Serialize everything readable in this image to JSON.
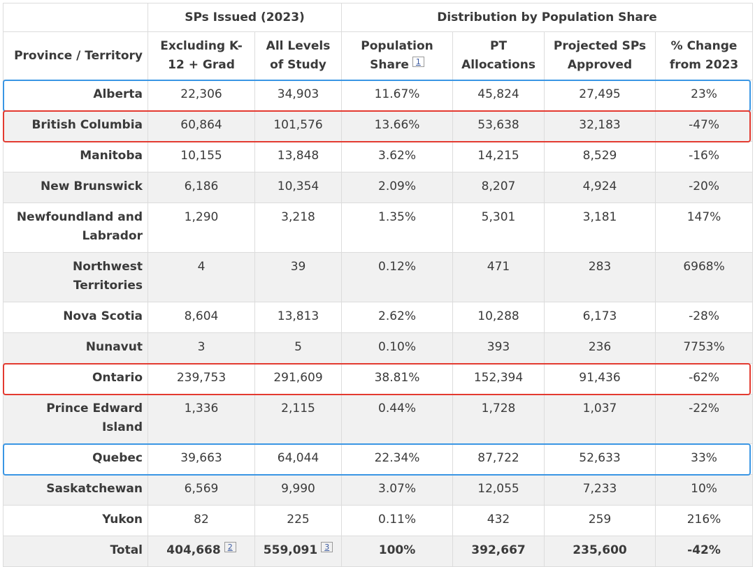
{
  "table": {
    "group_headers": [
      "SPs Issued (2023)",
      "Distribution by Population Share"
    ],
    "col_province": "Province / Territory",
    "col_excl": "Excluding K-12 + Grad",
    "col_all": "All Levels of Study",
    "col_popshare": "Population Share",
    "col_popshare_fn": "1",
    "col_pt": "PT Allocations",
    "col_projected": "Projected SPs Approved",
    "col_change": "% Change from 2023",
    "rows": [
      {
        "province": "Alberta",
        "excl": "22,306",
        "all": "34,903",
        "share": "11.67%",
        "pt": "45,824",
        "projected": "27,495",
        "change": "23%"
      },
      {
        "province": "British Columbia",
        "excl": "60,864",
        "all": "101,576",
        "share": "13.66%",
        "pt": "53,638",
        "projected": "32,183",
        "change": "-47%"
      },
      {
        "province": "Manitoba",
        "excl": "10,155",
        "all": "13,848",
        "share": "3.62%",
        "pt": "14,215",
        "projected": "8,529",
        "change": "-16%"
      },
      {
        "province": "New Brunswick",
        "excl": "6,186",
        "all": "10,354",
        "share": "2.09%",
        "pt": "8,207",
        "projected": "4,924",
        "change": "-20%"
      },
      {
        "province": "Newfoundland and Labrador",
        "excl": "1,290",
        "all": "3,218",
        "share": "1.35%",
        "pt": "5,301",
        "projected": "3,181",
        "change": "147%"
      },
      {
        "province": "Northwest Territories",
        "excl": "4",
        "all": "39",
        "share": "0.12%",
        "pt": "471",
        "projected": "283",
        "change": "6968%"
      },
      {
        "province": "Nova Scotia",
        "excl": "8,604",
        "all": "13,813",
        "share": "2.62%",
        "pt": "10,288",
        "projected": "6,173",
        "change": "-28%"
      },
      {
        "province": "Nunavut",
        "excl": "3",
        "all": "5",
        "share": "0.10%",
        "pt": "393",
        "projected": "236",
        "change": "7753%"
      },
      {
        "province": "Ontario",
        "excl": "239,753",
        "all": "291,609",
        "share": "38.81%",
        "pt": "152,394",
        "projected": "91,436",
        "change": "-62%"
      },
      {
        "province": "Prince Edward Island",
        "excl": "1,336",
        "all": "2,115",
        "share": "0.44%",
        "pt": "1,728",
        "projected": "1,037",
        "change": "-22%"
      },
      {
        "province": "Quebec",
        "excl": "39,663",
        "all": "64,044",
        "share": "22.34%",
        "pt": "87,722",
        "projected": "52,633",
        "change": "33%"
      },
      {
        "province": "Saskatchewan",
        "excl": "6,569",
        "all": "9,990",
        "share": "3.07%",
        "pt": "12,055",
        "projected": "7,233",
        "change": "10%"
      },
      {
        "province": "Yukon",
        "excl": "82",
        "all": "225",
        "share": "0.11%",
        "pt": "432",
        "projected": "259",
        "change": "216%"
      }
    ],
    "total": {
      "label": "Total",
      "excl": "404,668",
      "excl_fn": "2",
      "all": "559,091",
      "all_fn": "3",
      "share": "100%",
      "pt": "392,667",
      "projected": "235,600",
      "change": "-42%"
    }
  },
  "highlight_colors": {
    "blue": "#3a96e4",
    "red": "#e33a30"
  },
  "highlights": [
    {
      "province": "Alberta",
      "color": "blue"
    },
    {
      "province": "British Columbia",
      "color": "red"
    },
    {
      "province": "Ontario",
      "color": "red"
    },
    {
      "province": "Quebec",
      "color": "blue"
    }
  ]
}
